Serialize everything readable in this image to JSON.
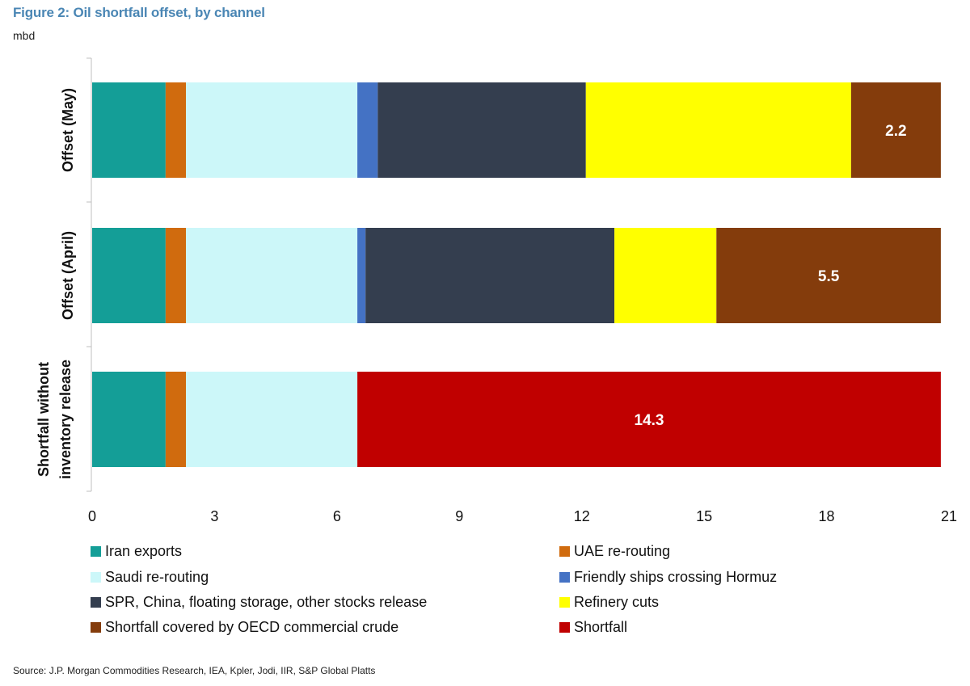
{
  "figure_title": "Figure 2: Oil shortfall offset, by channel",
  "unit_label": "mbd",
  "source": "Source: J.P. Morgan Commodities Research, IEA, Kpler, Jodi, IIR, S&P Global Platts",
  "chart_data": {
    "type": "bar",
    "orientation": "horizontal",
    "stacked": true,
    "title": "Figure 2: Oil shortfall offset, by channel",
    "ylabel": "mbd",
    "xlim": [
      0,
      21
    ],
    "xticks": [
      0,
      3,
      6,
      9,
      12,
      15,
      18,
      21
    ],
    "grid": false,
    "legend_position": "bottom",
    "categories": [
      "Offset (May)",
      "Offset (April)",
      "Shortfall without inventory release"
    ],
    "category_label_lines": [
      [
        "Offset (May)"
      ],
      [
        "Offset (April)"
      ],
      [
        "Shortfall without",
        "inventory release"
      ]
    ],
    "series": [
      {
        "name": "Iran exports",
        "color": "#149e97",
        "values": [
          1.8,
          1.8,
          1.8
        ]
      },
      {
        "name": "UAE re-routing",
        "color": "#d06b0e",
        "values": [
          0.5,
          0.5,
          0.5
        ]
      },
      {
        "name": "Saudi re-routing",
        "color": "#ccf7f9",
        "values": [
          4.2,
          4.2,
          4.2
        ]
      },
      {
        "name": "Friendly ships crossing Hormuz",
        "color": "#4472c4",
        "values": [
          0.5,
          0.2,
          0
        ]
      },
      {
        "name": "SPR, China, floating storage, other stocks release",
        "color": "#343e4f",
        "values": [
          5.1,
          6.1,
          0
        ]
      },
      {
        "name": "Refinery cuts",
        "color": "#ffff00",
        "values": [
          6.5,
          2.5,
          0
        ]
      },
      {
        "name": "Shortfall covered by OECD commercial crude",
        "color": "#843c0c",
        "values": [
          2.2,
          5.5,
          0
        ]
      },
      {
        "name": "Shortfall",
        "color": "#c00000",
        "values": [
          0,
          0,
          14.3
        ]
      }
    ],
    "data_labels": [
      {
        "category": "Offset (May)",
        "series": "Shortfall covered by OECD commercial crude",
        "text": "2.2"
      },
      {
        "category": "Offset (April)",
        "series": "Shortfall covered by OECD commercial crude",
        "text": "5.5"
      },
      {
        "category": "Shortfall without inventory release",
        "series": "Shortfall",
        "text": "14.3"
      }
    ],
    "legend_order": [
      0,
      1,
      2,
      3,
      4,
      5,
      6,
      7
    ]
  }
}
